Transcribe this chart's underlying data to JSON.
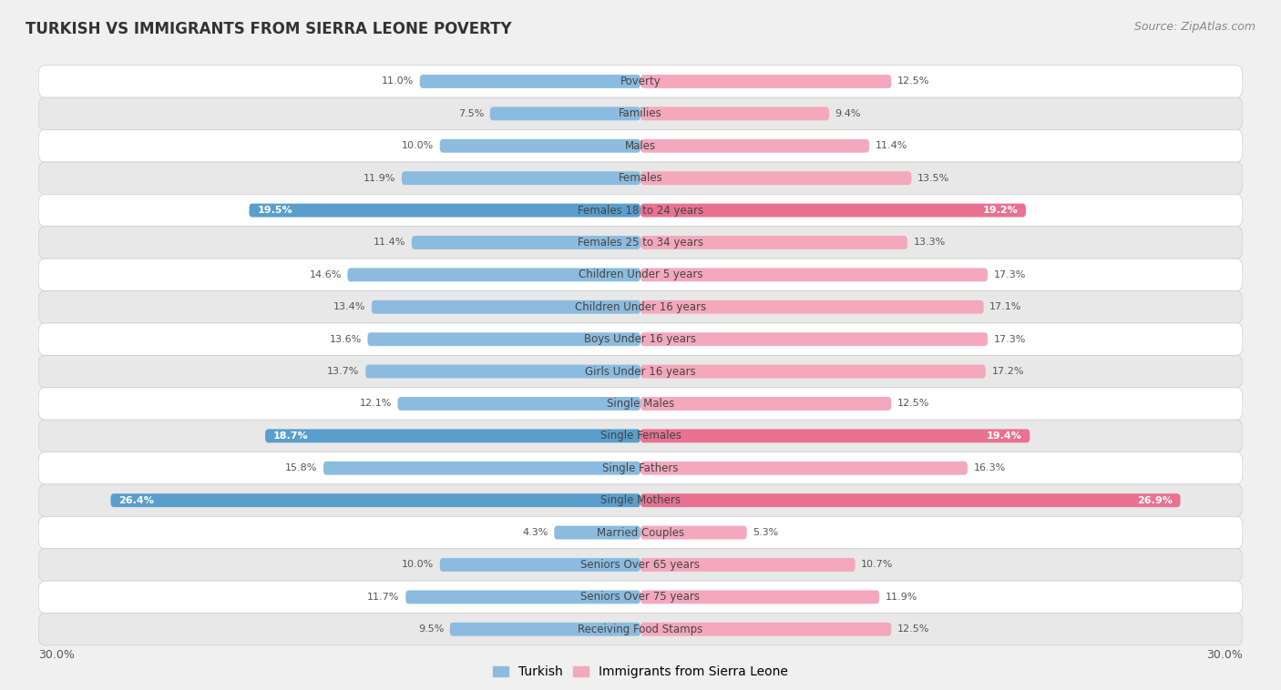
{
  "title": "TURKISH VS IMMIGRANTS FROM SIERRA LEONE POVERTY",
  "source": "Source: ZipAtlas.com",
  "categories": [
    "Poverty",
    "Families",
    "Males",
    "Females",
    "Females 18 to 24 years",
    "Females 25 to 34 years",
    "Children Under 5 years",
    "Children Under 16 years",
    "Boys Under 16 years",
    "Girls Under 16 years",
    "Single Males",
    "Single Females",
    "Single Fathers",
    "Single Mothers",
    "Married Couples",
    "Seniors Over 65 years",
    "Seniors Over 75 years",
    "Receiving Food Stamps"
  ],
  "turkish": [
    11.0,
    7.5,
    10.0,
    11.9,
    19.5,
    11.4,
    14.6,
    13.4,
    13.6,
    13.7,
    12.1,
    18.7,
    15.8,
    26.4,
    4.3,
    10.0,
    11.7,
    9.5
  ],
  "sierra_leone": [
    12.5,
    9.4,
    11.4,
    13.5,
    19.2,
    13.3,
    17.3,
    17.1,
    17.3,
    17.2,
    12.5,
    19.4,
    16.3,
    26.9,
    5.3,
    10.7,
    11.9,
    12.5
  ],
  "turkish_color": "#8bbcdf",
  "sierra_leone_color": "#f4a8be",
  "turkish_highlight_color": "#5a9ecb",
  "sierra_leone_highlight_color": "#e8728f",
  "highlight_rows": [
    4,
    11,
    13
  ],
  "bar_height": 0.42,
  "background_color": "#f0f0f0",
  "row_bg_light": "#ffffff",
  "row_bg_dark": "#e8e8e8",
  "legend_turkish": "Turkish",
  "legend_sierra": "Immigrants from Sierra Leone",
  "axis_label": "30.0%"
}
